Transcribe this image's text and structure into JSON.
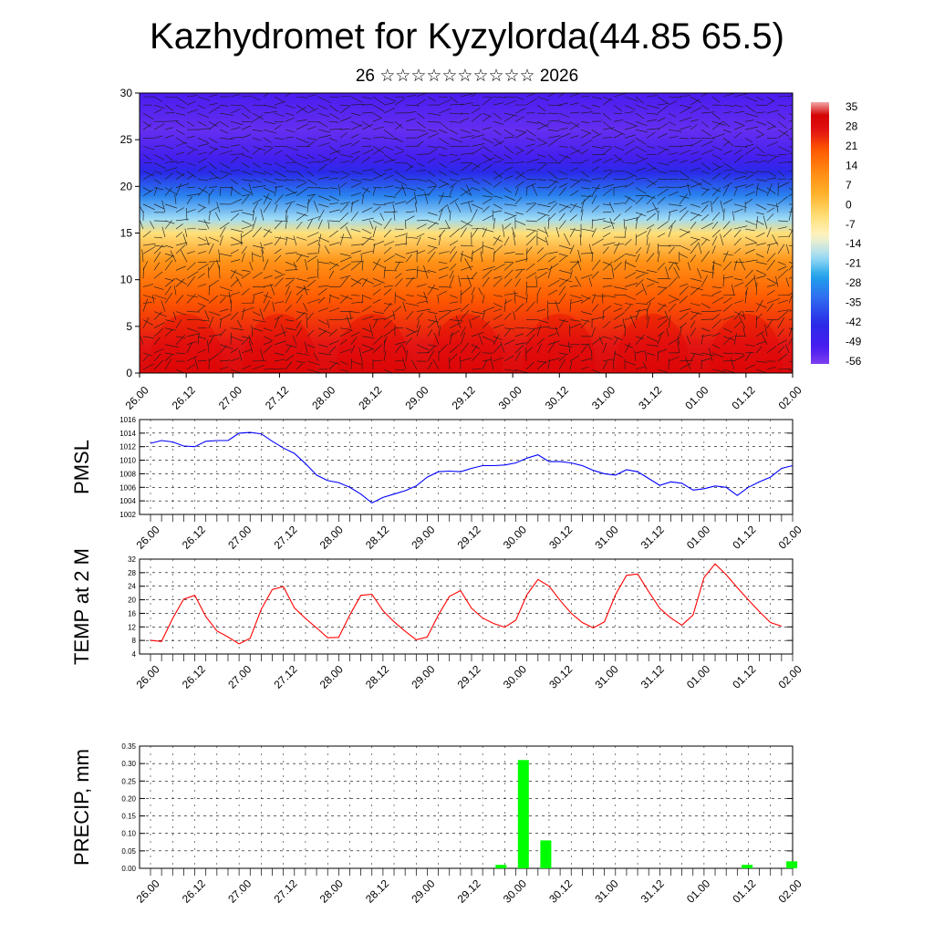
{
  "header": {
    "title": "Kazhydromet for Kyzylorda(44.85 65.5)",
    "subtitle": "26 ☆☆☆☆☆☆☆☆☆☆ 2026"
  },
  "time_labels": [
    "26.00",
    "26.12",
    "27.00",
    "27.12",
    "28.00",
    "28.12",
    "29.00",
    "29.12",
    "30.00",
    "30.12",
    "31.00",
    "31.12",
    "01.00",
    "01.12",
    "02.00"
  ],
  "chart_data": [
    {
      "type": "heatmap",
      "name": "cross-section",
      "title": "Kazhydromet for Kyzylorda(44.85 65.5)",
      "y_range": [
        0,
        30
      ],
      "y_ticks": [
        0,
        5,
        10,
        15,
        20,
        25,
        30
      ],
      "colorbar_labels": [
        "35",
        "28",
        "21",
        "14",
        "7",
        "0",
        "-7",
        "-14",
        "-21",
        "-28",
        "-35",
        "-42",
        "-49",
        "-56"
      ],
      "colorbar_range": [
        -60,
        38
      ],
      "temperature_profile": [
        {
          "level": 0,
          "value": 30
        },
        {
          "level": 3,
          "value": 27
        },
        {
          "level": 8,
          "value": 20
        },
        {
          "level": 12,
          "value": 10
        },
        {
          "level": 15,
          "value": -5
        },
        {
          "level": 16.5,
          "value": -20
        },
        {
          "level": 19,
          "value": -32
        },
        {
          "level": 21.5,
          "value": -45
        },
        {
          "level": 23,
          "value": -52
        },
        {
          "level": 26,
          "value": -57
        },
        {
          "level": 30,
          "value": -54
        }
      ],
      "colors": {
        "low": "#7a25f2",
        "mid": "#ffe680",
        "high": "#e00000"
      }
    },
    {
      "type": "line",
      "name": "pmsl",
      "ylabel": "PMSL",
      "ylim": [
        1002,
        1016
      ],
      "y_ticks": [
        1002,
        1004,
        1006,
        1008,
        1010,
        1012,
        1014,
        1016
      ],
      "color": "#0000ff",
      "values": [
        1012.5,
        1012.9,
        1012.7,
        1012.1,
        1012.0,
        1012.8,
        1012.9,
        1012.9,
        1014.0,
        1014.1,
        1013.9,
        1012.8,
        1011.8,
        1011.0,
        1009.5,
        1007.8,
        1007.0,
        1006.7,
        1006.0,
        1005.0,
        1003.7,
        1004.5,
        1005.0,
        1005.5,
        1006.2,
        1007.5,
        1008.3,
        1008.4,
        1008.3,
        1008.8,
        1009.2,
        1009.2,
        1009.3,
        1009.6,
        1010.3,
        1010.8,
        1009.8,
        1009.8,
        1009.6,
        1009.2,
        1008.5,
        1008.0,
        1007.8,
        1008.6,
        1008.3,
        1007.3,
        1006.3,
        1006.8,
        1006.6,
        1005.6,
        1005.8,
        1006.2,
        1006.0,
        1004.8,
        1006.0,
        1006.8,
        1007.5,
        1008.8,
        1009.2
      ],
      "x_start_index": 1
    },
    {
      "type": "line",
      "name": "temp-2m",
      "ylabel": "TEMP at 2 M",
      "ylim": [
        4,
        32
      ],
      "y_ticks": [
        4,
        8,
        12,
        16,
        20,
        24,
        28,
        32
      ],
      "color": "#ff0000",
      "values": [
        8.0,
        7.7,
        14.5,
        20.2,
        21.3,
        15.0,
        10.8,
        9.0,
        7.0,
        8.6,
        17.2,
        23.0,
        23.9,
        17.6,
        14.5,
        11.7,
        8.8,
        8.9,
        15.5,
        21.3,
        21.6,
        16.8,
        13.5,
        10.7,
        8.2,
        9.0,
        15.5,
        21.0,
        22.7,
        17.5,
        14.6,
        13.0,
        11.9,
        14.0,
        21.5,
        26.0,
        24.0,
        19.8,
        16.0,
        13.3,
        11.7,
        13.5,
        21.5,
        27.2,
        27.6,
        22.4,
        17.5,
        14.6,
        12.5,
        15.5,
        26.6,
        30.6,
        27.4,
        23.6,
        20.0,
        16.5,
        13.3,
        12.2
      ],
      "x_start_index": 1
    },
    {
      "type": "bar",
      "name": "precip",
      "ylabel": "PRECIP, mm",
      "ylim": [
        0,
        0.35
      ],
      "y_ticks": [
        "0.00",
        "0.05",
        "0.10",
        "0.15",
        "0.20",
        "0.25",
        "0.30",
        "0.35"
      ],
      "color": "#00ff00",
      "bars": [
        {
          "x_index": 16,
          "value": 0.01
        },
        {
          "x_index": 17,
          "value": 0.31
        },
        {
          "x_index": 18,
          "value": 0.08
        },
        {
          "x_index": 27,
          "value": 0.01
        },
        {
          "x_index": 29,
          "value": 0.02
        }
      ]
    }
  ]
}
